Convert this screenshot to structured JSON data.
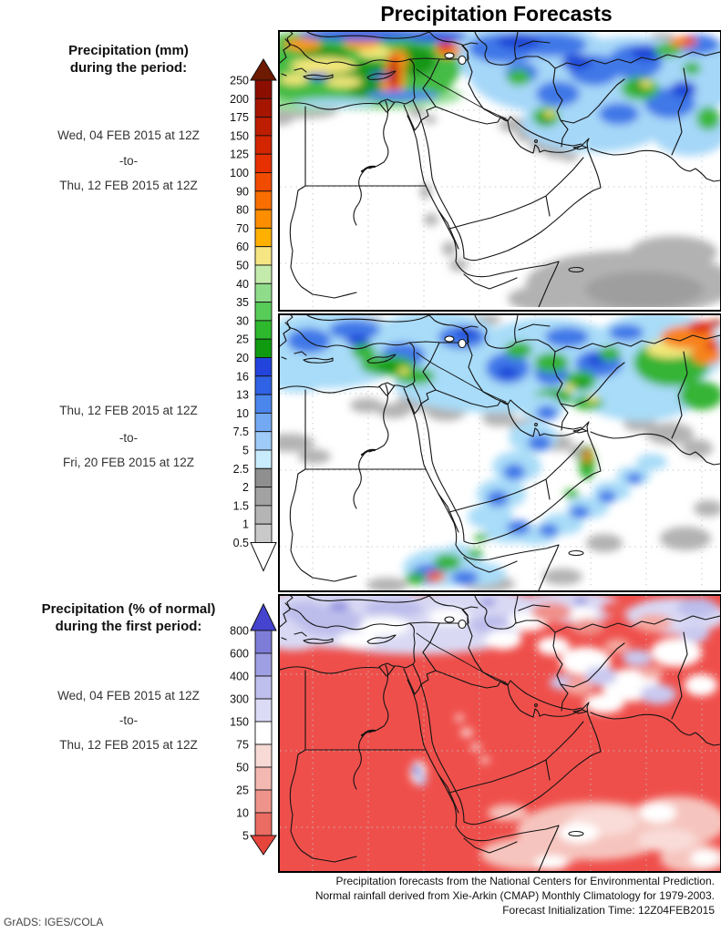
{
  "title": "Precipitation Forecasts",
  "panels": {
    "first_mm": {
      "heading_line1": "Precipitation (mm)",
      "heading_line2": "during the period:",
      "period_start": "Wed, 04 FEB 2015 at 12Z",
      "period_separator": "-to-",
      "period_end": "Thu, 12 FEB 2015 at 12Z"
    },
    "second_mm": {
      "period_start": "Thu, 12 FEB 2015 at 12Z",
      "period_separator": "-to-",
      "period_end": "Fri, 20 FEB 2015 at 12Z"
    },
    "percent_normal": {
      "heading_line1": "Precipitation (% of normal)",
      "heading_line2": "during the first period:",
      "period_start": "Wed, 04 FEB 2015 at 12Z",
      "period_separator": "-to-",
      "period_end": "Thu, 12 FEB 2015 at 12Z"
    }
  },
  "colorbar_mm": {
    "unit": "mm",
    "tick_labels": [
      "250",
      "200",
      "175",
      "150",
      "125",
      "100",
      "90",
      "80",
      "70",
      "60",
      "50",
      "40",
      "35",
      "30",
      "25",
      "20",
      "16",
      "13",
      "10",
      "7.5",
      "5",
      "2.5",
      "2",
      "1.5",
      "1",
      "0.5"
    ],
    "segment_colors": [
      "#8c0e00",
      "#a51500",
      "#bd1d00",
      "#d22500",
      "#e63000",
      "#f14b00",
      "#f86e00",
      "#fc8e00",
      "#ffb000",
      "#f6e683",
      "#c5ebac",
      "#8fdc8a",
      "#58cc58",
      "#2eb82e",
      "#0f9a0f",
      "#2244dd",
      "#2f62e4",
      "#4b86ec",
      "#73a9f2",
      "#9ecbf8",
      "#c9ecfd",
      "#8f8f8f",
      "#a2a2a2",
      "#b5b5b5",
      "#c9c9c9"
    ],
    "arrow_top_color": "#6e1a00",
    "arrow_bottom_color": "#ffffff"
  },
  "colorbar_percent": {
    "unit": "% of normal",
    "tick_labels": [
      "800",
      "600",
      "400",
      "300",
      "150",
      "75",
      "50",
      "25",
      "10",
      "5"
    ],
    "segment_colors": [
      "#7d7dd8",
      "#9f9fe3",
      "#bfbfed",
      "#dbdbf5",
      "#ffffff",
      "#f7dad5",
      "#f3b8b1",
      "#ef948b",
      "#ea6c62"
    ],
    "arrow_top_color": "#4444cf",
    "arrow_bottom_color": "#e6453c"
  },
  "caption": {
    "line1": "Precipitation forecasts from the National Centers for Environmental Prediction.",
    "line2": "Normal rainfall derived from Xie-Arkin (CMAP) Monthly Climatology for 1979-2003.",
    "line3": "Forecast Initialization Time: 12Z04FEB2015"
  },
  "credit": "GrADS: IGES/COLA"
}
